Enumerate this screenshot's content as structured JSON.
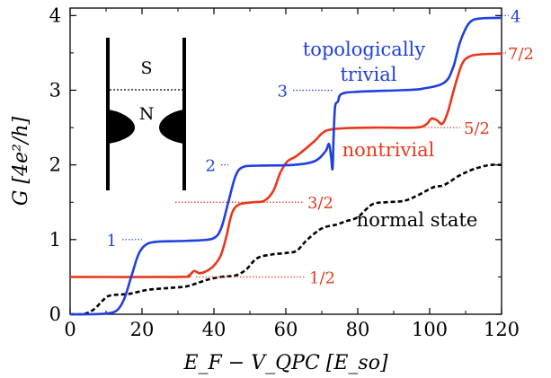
{
  "chart_data": {
    "type": "line",
    "xlabel": "E_F − V_QPC  [E_so]",
    "ylabel": "G  [4e²/h]",
    "xlim": [
      0,
      120
    ],
    "ylim": [
      0,
      4.1
    ],
    "x_ticks": [
      "0",
      "20",
      "40",
      "60",
      "80",
      "100",
      "120"
    ],
    "y_ticks": [
      "0",
      "1",
      "2",
      "3",
      "4"
    ],
    "grid": false,
    "colors": {
      "trivial": "#1f3fe0",
      "nontrivial": "#e8371c",
      "normal": "#000000"
    },
    "series": [
      {
        "name": "topologically trivial",
        "color": "#1f3fe0",
        "style": "solid",
        "points": [
          [
            0,
            0
          ],
          [
            6,
            0
          ],
          [
            10,
            0.01
          ],
          [
            13,
            0.05
          ],
          [
            15,
            0.2
          ],
          [
            17,
            0.5
          ],
          [
            19,
            0.8
          ],
          [
            21,
            0.93
          ],
          [
            24,
            0.97
          ],
          [
            30,
            0.98
          ],
          [
            36,
            0.99
          ],
          [
            40,
            1.02
          ],
          [
            42,
            1.15
          ],
          [
            44,
            1.5
          ],
          [
            46,
            1.85
          ],
          [
            48,
            1.97
          ],
          [
            52,
            1.99
          ],
          [
            62,
            2.0
          ],
          [
            68,
            2.05
          ],
          [
            71,
            2.18
          ],
          [
            72,
            2.28
          ],
          [
            72.6,
            2.1
          ],
          [
            73,
            1.95
          ],
          [
            73.3,
            2.4
          ],
          [
            73.7,
            2.78
          ],
          [
            74.5,
            2.85
          ],
          [
            75.5,
            2.95
          ],
          [
            80,
            2.98
          ],
          [
            92,
            3.0
          ],
          [
            98,
            3.02
          ],
          [
            104,
            3.1
          ],
          [
            106.5,
            3.3
          ],
          [
            108.5,
            3.65
          ],
          [
            111,
            3.9
          ],
          [
            114,
            3.96
          ],
          [
            120,
            3.97
          ]
        ]
      },
      {
        "name": "nontrivial",
        "color": "#e8371c",
        "style": "solid",
        "points": [
          [
            0,
            0.5
          ],
          [
            30,
            0.5
          ],
          [
            33,
            0.52
          ],
          [
            34.5,
            0.58
          ],
          [
            36,
            0.55
          ],
          [
            38,
            0.58
          ],
          [
            40,
            0.65
          ],
          [
            42,
            0.8
          ],
          [
            43.5,
            1.05
          ],
          [
            45,
            1.35
          ],
          [
            47,
            1.47
          ],
          [
            51,
            1.5
          ],
          [
            54,
            1.52
          ],
          [
            56.5,
            1.65
          ],
          [
            58.5,
            1.9
          ],
          [
            60.5,
            2.05
          ],
          [
            63,
            2.12
          ],
          [
            68,
            2.32
          ],
          [
            70,
            2.42
          ],
          [
            72,
            2.47
          ],
          [
            76,
            2.49
          ],
          [
            85,
            2.5
          ],
          [
            96,
            2.5
          ],
          [
            99,
            2.54
          ],
          [
            100.5,
            2.62
          ],
          [
            102,
            2.6
          ],
          [
            103.5,
            2.55
          ],
          [
            105,
            2.7
          ],
          [
            107,
            3.05
          ],
          [
            109,
            3.35
          ],
          [
            111,
            3.45
          ],
          [
            114,
            3.48
          ],
          [
            120,
            3.49
          ]
        ]
      },
      {
        "name": "normal state",
        "color": "#000000",
        "style": "dashed",
        "points": [
          [
            0,
            0
          ],
          [
            3,
            0
          ],
          [
            5,
            0.02
          ],
          [
            7,
            0.08
          ],
          [
            9,
            0.18
          ],
          [
            11,
            0.25
          ],
          [
            16,
            0.27
          ],
          [
            19,
            0.3
          ],
          [
            22,
            0.33
          ],
          [
            27,
            0.35
          ],
          [
            32,
            0.37
          ],
          [
            35,
            0.41
          ],
          [
            38,
            0.46
          ],
          [
            42,
            0.5
          ],
          [
            46,
            0.52
          ],
          [
            49,
            0.6
          ],
          [
            52,
            0.75
          ],
          [
            56,
            0.8
          ],
          [
            60,
            0.82
          ],
          [
            63,
            0.85
          ],
          [
            66,
            1.0
          ],
          [
            70,
            1.15
          ],
          [
            74,
            1.2
          ],
          [
            77,
            1.25
          ],
          [
            80,
            1.3
          ],
          [
            84,
            1.47
          ],
          [
            88,
            1.5
          ],
          [
            93,
            1.52
          ],
          [
            97,
            1.6
          ],
          [
            101,
            1.7
          ],
          [
            104,
            1.73
          ],
          [
            108,
            1.85
          ],
          [
            111,
            1.92
          ],
          [
            114,
            1.97
          ],
          [
            117,
            2.0
          ],
          [
            120,
            2.0
          ]
        ]
      }
    ],
    "annotations": {
      "trivial": [
        "topologically",
        "trivial"
      ],
      "nontrivial": "nontrivial",
      "normal": "normal state"
    },
    "plateau_labels": {
      "trivial": [
        {
          "text": "1",
          "y": 1,
          "x_from": 20
        },
        {
          "text": "2",
          "y": 2,
          "x_from": 44
        },
        {
          "text": "3",
          "y": 3,
          "x_from": 73
        },
        {
          "text": "4",
          "y": 4,
          "x_from": 115
        }
      ],
      "nontrivial": [
        {
          "text": "1/2",
          "y": 0.5,
          "x_to": 35
        },
        {
          "text": "3/2",
          "y": 1.5,
          "x_to": 48
        },
        {
          "text": "5/2",
          "y": 2.5,
          "x_to": 96
        },
        {
          "text": "7/2",
          "y": 3.5,
          "x_to": 114
        }
      ]
    },
    "inset": {
      "top_label": "S",
      "bottom_label": "N"
    }
  }
}
